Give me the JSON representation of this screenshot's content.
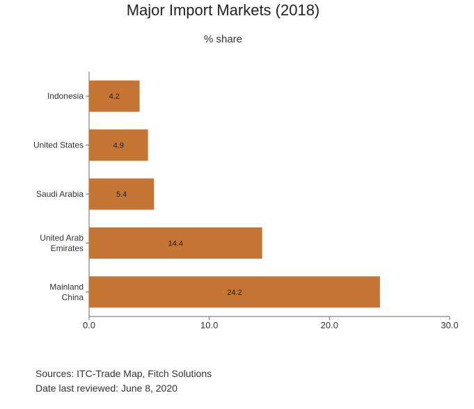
{
  "chart_data": {
    "type": "bar",
    "orientation": "horizontal",
    "title": "Major Import Markets (2018)",
    "subtitle": "% share",
    "categories": [
      [
        "Indonesia"
      ],
      [
        "United States"
      ],
      [
        "Saudi Arabia"
      ],
      [
        "United Arab",
        "Emirates"
      ],
      [
        "Mainland",
        "China"
      ]
    ],
    "values": [
      4.2,
      4.9,
      5.4,
      14.4,
      24.2
    ],
    "data_labels": [
      "4.2",
      "4.9",
      "5.4",
      "14.4",
      "24.2"
    ],
    "xlim": [
      0,
      30
    ],
    "ticks": [
      0,
      10,
      20,
      30
    ],
    "tick_labels": [
      "0.0",
      "10.0",
      "20.0",
      "30.0"
    ],
    "grid": false,
    "bar_color": "#C47433"
  },
  "footer": {
    "sources": "Sources: ITC-Trade Map, Fitch Solutions",
    "reviewed": "Date last reviewed: June 8, 2020"
  }
}
